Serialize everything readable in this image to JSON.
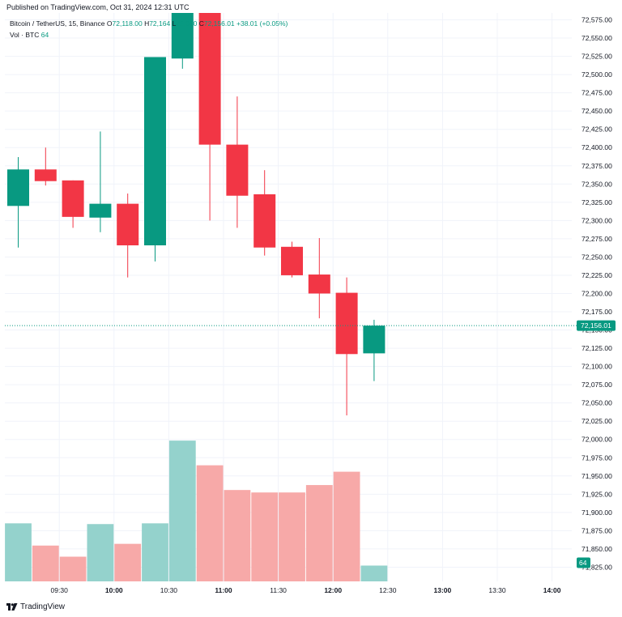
{
  "header": {
    "published": "Published on TradingView.com, Oct 31, 2024 12:31 UTC"
  },
  "legend": {
    "symbol": "Bitcoin / TetherUS, 15, Binance",
    "o_label": "O",
    "o_value": "72,118.00",
    "h_label": "H",
    "h_value": "72,164",
    "l_label": "L",
    "l_value": "72,080",
    "c_label": "C",
    "c_value": "72,156.01",
    "change": "+38.01 (+0.05%)",
    "vol_label": "Vol · BTC",
    "vol_value": "64"
  },
  "footer": {
    "brand": "TradingView",
    "logo_icon": "tradingview-logo-icon"
  },
  "colors": {
    "up": "#089981",
    "down": "#f23645",
    "vol_up": "#94d2cc",
    "vol_down": "#f7a9a8",
    "grid": "#f0f3fa",
    "axis_text": "#131722"
  },
  "chart_data": {
    "type": "candlestick",
    "symbol": "Bitcoin / TetherUS",
    "interval": "15",
    "exchange": "Binance",
    "ylim": [
      71810,
      72585
    ],
    "y_ticks": [
      71825,
      71850,
      71875,
      71900,
      71925,
      71950,
      71975,
      72000,
      72025,
      72050,
      72075,
      72100,
      72125,
      72150,
      72175,
      72200,
      72225,
      72250,
      72275,
      72300,
      72325,
      72350,
      72375,
      72400,
      72425,
      72450,
      72475,
      72500,
      72525,
      72550,
      72575
    ],
    "y_tick_labels": [
      "71,825.00",
      "71,850.00",
      "71,875.00",
      "71,900.00",
      "71,925.00",
      "71,950.00",
      "71,975.00",
      "72,000.00",
      "72,025.00",
      "72,050.00",
      "72,075.00",
      "72,100.00",
      "72,125.00",
      "72,150.00",
      "72,175.00",
      "72,200.00",
      "72,225.00",
      "72,250.00",
      "72,275.00",
      "72,300.00",
      "72,325.00",
      "72,350.00",
      "72,375.00",
      "72,400.00",
      "72,425.00",
      "72,450.00",
      "72,475.00",
      "72,500.00",
      "72,525.00",
      "72,550.00",
      "72,575.00"
    ],
    "x_ticks": [
      "09:30",
      "10:00",
      "10:30",
      "11:00",
      "11:30",
      "12:00",
      "12:30",
      "13:00",
      "13:30",
      "14:00"
    ],
    "x_tick_index": [
      1.5,
      3.5,
      5.5,
      7.5,
      9.5,
      11.5,
      13.5,
      15.5,
      17.5,
      19.5
    ],
    "last_price": 72156.01,
    "last_price_label": "72,156.01",
    "last_volume_label": "64",
    "candles": [
      {
        "time": "09:00",
        "open": 72320,
        "high": 72387,
        "low": 72263,
        "close": 72370
      },
      {
        "time": "09:15",
        "open": 72370,
        "high": 72400,
        "low": 72348,
        "close": 72354
      },
      {
        "time": "09:30",
        "open": 72355,
        "high": 72355,
        "low": 72290,
        "close": 72305
      },
      {
        "time": "09:45",
        "open": 72304,
        "high": 72422,
        "low": 72284,
        "close": 72323
      },
      {
        "time": "10:00",
        "open": 72323,
        "high": 72337,
        "low": 72222,
        "close": 72266
      },
      {
        "time": "10:15",
        "open": 72266,
        "high": 72524,
        "low": 72244,
        "close": 72524
      },
      {
        "time": "10:30",
        "open": 72522,
        "high": 72650,
        "low": 72508,
        "close": 72650
      },
      {
        "time": "10:45",
        "open": 72600,
        "high": 72600,
        "low": 72300,
        "close": 72404
      },
      {
        "time": "11:00",
        "open": 72404,
        "high": 72470,
        "low": 72290,
        "close": 72334
      },
      {
        "time": "11:15",
        "open": 72336,
        "high": 72369,
        "low": 72252,
        "close": 72263
      },
      {
        "time": "11:30",
        "open": 72264,
        "high": 72271,
        "low": 72222,
        "close": 72225
      },
      {
        "time": "11:45",
        "open": 72226,
        "high": 72276,
        "low": 72166,
        "close": 72200
      },
      {
        "time": "12:00",
        "open": 72201,
        "high": 72222,
        "low": 72033,
        "close": 72117
      },
      {
        "time": "12:15",
        "open": 72118,
        "high": 72164,
        "low": 72080,
        "close": 72156
      }
    ],
    "volume": [
      235,
      145,
      100,
      232,
      152,
      235,
      570,
      470,
      370,
      360,
      360,
      390,
      444,
      64
    ]
  }
}
